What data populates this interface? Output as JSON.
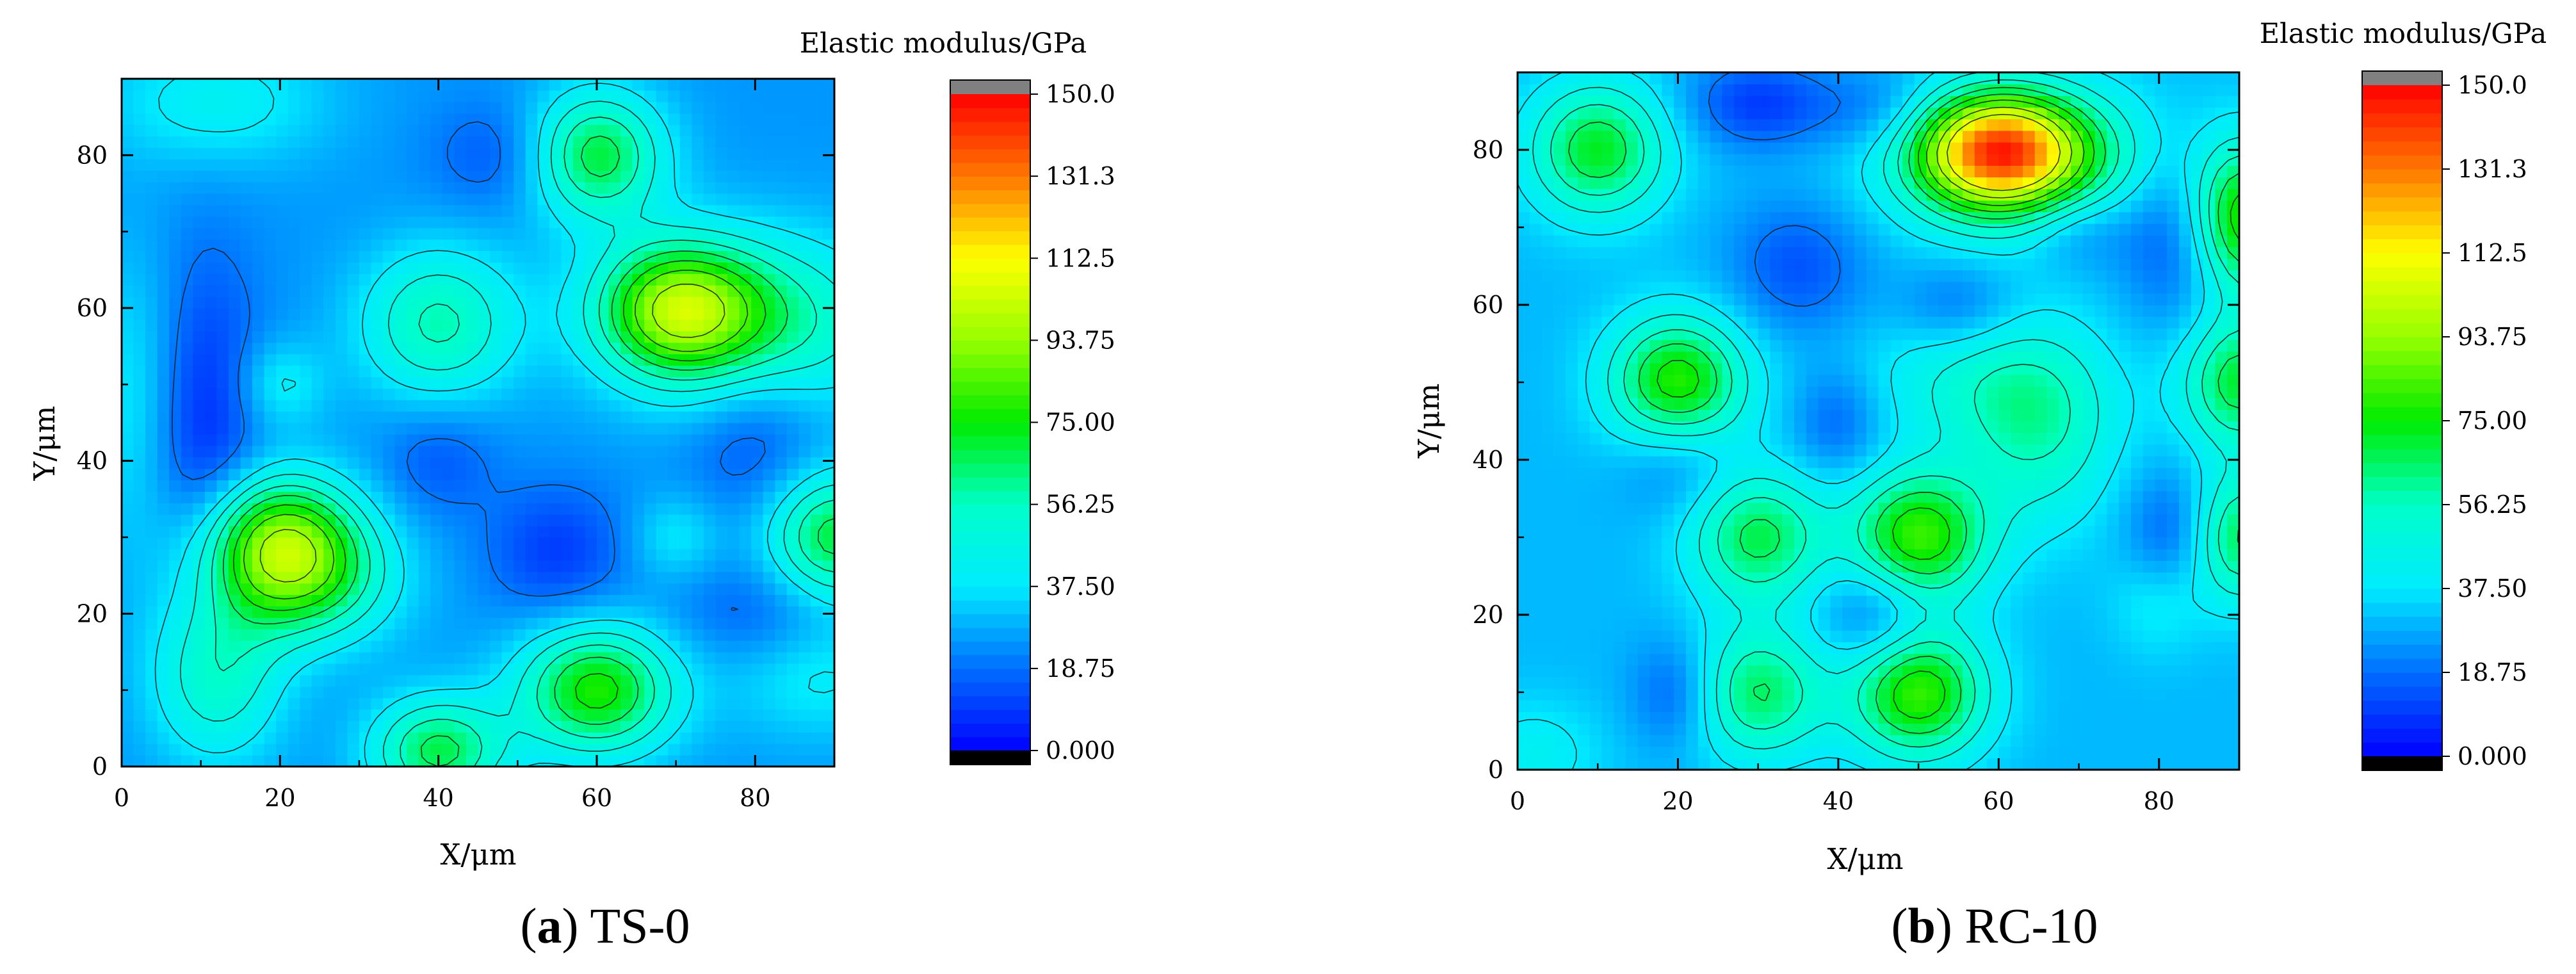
{
  "chart_data": [
    {
      "type": "heatmap",
      "panel_letter": "a",
      "panel_name": "TS-0",
      "xlabel": "X/μm",
      "ylabel": "Y/μm",
      "colorbar_title": "Elastic modulus/GPa",
      "xlim": [
        0,
        90
      ],
      "ylim": [
        0,
        90
      ],
      "x_ticks": [
        0,
        20,
        40,
        60,
        80
      ],
      "y_ticks": [
        0,
        20,
        40,
        60,
        80
      ],
      "colorbar_ticks": [
        "0.000",
        "18.75",
        "37.50",
        "56.25",
        "75.00",
        "93.75",
        "112.5",
        "131.3",
        "150.0"
      ],
      "colorbar_range": [
        0,
        150
      ],
      "background_value": 25,
      "peaks": [
        {
          "x": 20,
          "y": 30,
          "value": 80,
          "sx": 7,
          "sy": 6
        },
        {
          "x": 23,
          "y": 24,
          "value": 60,
          "sx": 8,
          "sy": 6
        },
        {
          "x": 70,
          "y": 60,
          "value": 80,
          "sx": 7,
          "sy": 6
        },
        {
          "x": 80,
          "y": 58,
          "value": 62,
          "sx": 12,
          "sy": 8
        },
        {
          "x": 60,
          "y": 10,
          "value": 78,
          "sx": 7,
          "sy": 6
        },
        {
          "x": 40,
          "y": 2,
          "value": 68,
          "sx": 6,
          "sy": 5
        },
        {
          "x": 60,
          "y": 80,
          "value": 70,
          "sx": 6,
          "sy": 6
        },
        {
          "x": 40,
          "y": 58,
          "value": 58,
          "sx": 7,
          "sy": 7
        },
        {
          "x": 12,
          "y": 12,
          "value": 55,
          "sx": 6,
          "sy": 8
        },
        {
          "x": 90,
          "y": 30,
          "value": 70,
          "sx": 6,
          "sy": 6
        },
        {
          "x": 12,
          "y": 87,
          "value": 42,
          "sx": 10,
          "sy": 6
        },
        {
          "x": 2,
          "y": 48,
          "value": 40,
          "sx": 5,
          "sy": 14
        },
        {
          "x": 88,
          "y": 12,
          "value": 40,
          "sx": 8,
          "sy": 6
        },
        {
          "x": 20,
          "y": 50,
          "value": 40,
          "sx": 4,
          "sy": 4
        },
        {
          "x": 70,
          "y": 30,
          "value": 38,
          "sx": 4,
          "sy": 4
        },
        {
          "x": 10,
          "y": 45,
          "value": 5,
          "sx": 5,
          "sy": 15
        },
        {
          "x": 40,
          "y": 40,
          "value": 15,
          "sx": 5,
          "sy": 5
        },
        {
          "x": 55,
          "y": 28,
          "value": 10,
          "sx": 6,
          "sy": 6
        },
        {
          "x": 80,
          "y": 44,
          "value": 12,
          "sx": 6,
          "sy": 8
        },
        {
          "x": 82,
          "y": 20,
          "value": 14,
          "sx": 8,
          "sy": 5
        },
        {
          "x": 48,
          "y": 80,
          "value": 14,
          "sx": 6,
          "sy": 5
        }
      ]
    },
    {
      "type": "heatmap",
      "panel_letter": "b",
      "panel_name": "RC-10",
      "xlabel": "X/μm",
      "ylabel": "Y/μm",
      "colorbar_title": "Elastic modulus/GPa",
      "xlim": [
        0,
        90
      ],
      "ylim": [
        0,
        90
      ],
      "x_ticks": [
        0,
        20,
        40,
        60,
        80
      ],
      "y_ticks": [
        0,
        20,
        40,
        60,
        80
      ],
      "colorbar_ticks": [
        "0.000",
        "18.75",
        "37.50",
        "56.25",
        "75.00",
        "93.75",
        "112.5",
        "131.3",
        "150.0"
      ],
      "colorbar_range": [
        0,
        150
      ],
      "background_value": 30,
      "peaks": [
        {
          "x": 10,
          "y": 80,
          "value": 72,
          "sx": 6,
          "sy": 6
        },
        {
          "x": 60,
          "y": 80,
          "value": 118,
          "sx": 7,
          "sy": 5
        },
        {
          "x": 64,
          "y": 78,
          "value": 62,
          "sx": 12,
          "sy": 7
        },
        {
          "x": 90,
          "y": 71,
          "value": 85,
          "sx": 5,
          "sy": 7
        },
        {
          "x": 20,
          "y": 50,
          "value": 80,
          "sx": 6,
          "sy": 6
        },
        {
          "x": 90,
          "y": 50,
          "value": 70,
          "sx": 5,
          "sy": 6
        },
        {
          "x": 65,
          "y": 44,
          "value": 55,
          "sx": 7,
          "sy": 9
        },
        {
          "x": 56,
          "y": 50,
          "value": 45,
          "sx": 10,
          "sy": 6
        },
        {
          "x": 30,
          "y": 30,
          "value": 68,
          "sx": 6,
          "sy": 6
        },
        {
          "x": 50,
          "y": 30,
          "value": 82,
          "sx": 6,
          "sy": 6
        },
        {
          "x": 90,
          "y": 30,
          "value": 68,
          "sx": 5,
          "sy": 6
        },
        {
          "x": 30,
          "y": 10,
          "value": 66,
          "sx": 6,
          "sy": 6
        },
        {
          "x": 50,
          "y": 10,
          "value": 82,
          "sx": 6,
          "sy": 6
        },
        {
          "x": 2,
          "y": 2,
          "value": 42,
          "sx": 6,
          "sy": 5
        },
        {
          "x": 80,
          "y": 22,
          "value": 42,
          "sx": 4,
          "sy": 5
        },
        {
          "x": 30,
          "y": 86,
          "value": 10,
          "sx": 6,
          "sy": 4
        },
        {
          "x": 83,
          "y": 70,
          "value": 6,
          "sx": 5,
          "sy": 8
        },
        {
          "x": 35,
          "y": 65,
          "value": 14,
          "sx": 6,
          "sy": 6
        },
        {
          "x": 55,
          "y": 60,
          "value": 18,
          "sx": 5,
          "sy": 4
        },
        {
          "x": 20,
          "y": 40,
          "value": 18,
          "sx": 5,
          "sy": 5
        },
        {
          "x": 40,
          "y": 45,
          "value": 16,
          "sx": 4,
          "sy": 5
        },
        {
          "x": 45,
          "y": 20,
          "value": 12,
          "sx": 5,
          "sy": 5
        },
        {
          "x": 82,
          "y": 30,
          "value": 10,
          "sx": 4,
          "sy": 6
        },
        {
          "x": 20,
          "y": 10,
          "value": 14,
          "sx": 4,
          "sy": 5
        },
        {
          "x": 70,
          "y": 70,
          "value": 16,
          "sx": 5,
          "sy": 4
        },
        {
          "x": 45,
          "y": 85,
          "value": 18,
          "sx": 6,
          "sy": 4
        }
      ]
    }
  ],
  "colors": {
    "colorbar_under": "#000000",
    "colorbar_over": "#808080",
    "contour_line": "#1a1a1a"
  }
}
